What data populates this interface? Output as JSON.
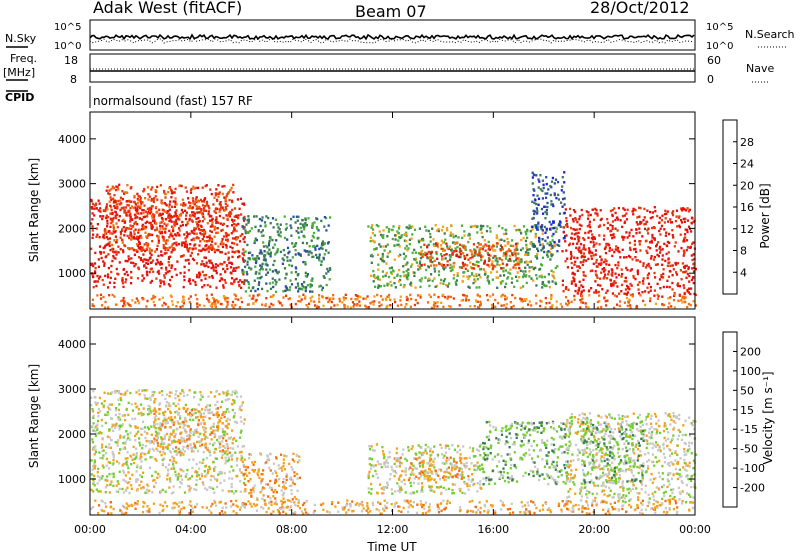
{
  "header": {
    "title": "Adak West (fitACF)",
    "beam": "Beam 07",
    "date": "28/Oct/2012"
  },
  "status": {
    "nsky_label": "N.Sky",
    "nsky_ticks": [
      "10^5",
      "10^0"
    ],
    "nsearch_label": "N.Search",
    "nsearch_ticks": [
      "10^5",
      "10^0"
    ],
    "freq_label_line1": "Freq.",
    "freq_label_line2": "[MHz]",
    "freq_ticks": [
      "18",
      "8"
    ],
    "nave_label": "Nave",
    "nave_ticks": [
      "60",
      "0"
    ],
    "cpid_label": "CPID",
    "cpid_text": "normalsound (fast) 157 RF"
  },
  "chart_data": [
    {
      "type": "heatmap",
      "name": "power",
      "ylabel": "Slant Range [km]",
      "yticks": [
        "1000",
        "2000",
        "3000",
        "4000"
      ],
      "ylim": [
        200,
        4600
      ],
      "xlim": [
        0,
        24
      ],
      "colorbar": {
        "label": "Power [dB]",
        "ticks": [
          "4",
          "8",
          "12",
          "16",
          "20",
          "24",
          "28"
        ],
        "colors": [
          "#1f1fe6",
          "#2a4fa0",
          "#3a7a54",
          "#4caf3a",
          "#f5a21a",
          "#f56f10",
          "#e83a0c",
          "#e4120b"
        ]
      },
      "regions": [
        {
          "t0": 0.0,
          "t1": 6.1,
          "r0": 700,
          "r1": 2700,
          "level": 7
        },
        {
          "t0": 0.5,
          "t1": 5.8,
          "r0": 1500,
          "r1": 3000,
          "level": 6
        },
        {
          "t0": 6.0,
          "t1": 9.5,
          "r0": 600,
          "r1": 2300,
          "level": 2
        },
        {
          "t0": 11.0,
          "t1": 18.5,
          "r0": 700,
          "r1": 2100,
          "level": 3
        },
        {
          "t0": 13.0,
          "t1": 17.0,
          "r0": 1100,
          "r1": 1700,
          "level": 6
        },
        {
          "t0": 17.5,
          "t1": 18.8,
          "r0": 1500,
          "r1": 3300,
          "level": 1
        },
        {
          "t0": 18.7,
          "t1": 24.0,
          "r0": 500,
          "r1": 2500,
          "level": 7
        },
        {
          "t0": 0.0,
          "t1": 24.0,
          "r0": 250,
          "r1": 550,
          "level": 5
        }
      ]
    },
    {
      "type": "heatmap",
      "name": "velocity",
      "ylabel": "Slant Range [km]",
      "yticks": [
        "1000",
        "2000",
        "3000",
        "4000"
      ],
      "ylim": [
        200,
        4600
      ],
      "xlim": [
        0,
        24
      ],
      "xlabel": "Time UT",
      "xticks": [
        "00:00",
        "04:00",
        "08:00",
        "12:00",
        "16:00",
        "20:00",
        "00:00"
      ],
      "colorbar": {
        "label": "Velocity [m s⁻¹]",
        "ticks": [
          "200",
          "100",
          "50",
          "15",
          "-15",
          "-50",
          "-100",
          "-200"
        ],
        "colors": [
          "#1f1fe6",
          "#2a4fa0",
          "#3a7a54",
          "#74cf2e",
          "#c8c8c8",
          "#f5a21a",
          "#f56f10",
          "#e83a0c",
          "#e4120b"
        ]
      },
      "regions": [
        {
          "t0": 0.0,
          "t1": 6.1,
          "r0": 700,
          "r1": 3000,
          "level": 4
        },
        {
          "t0": 2.5,
          "t1": 5.5,
          "r0": 1600,
          "r1": 2600,
          "level": 5
        },
        {
          "t0": 6.0,
          "t1": 8.3,
          "r0": 400,
          "r1": 1600,
          "level": 5
        },
        {
          "t0": 11.0,
          "t1": 15.5,
          "r0": 700,
          "r1": 1800,
          "level": 4
        },
        {
          "t0": 12.0,
          "t1": 15.0,
          "r0": 1000,
          "r1": 1500,
          "level": 5
        },
        {
          "t0": 15.5,
          "t1": 19.0,
          "r0": 900,
          "r1": 2300,
          "level": 3
        },
        {
          "t0": 18.8,
          "t1": 24.0,
          "r0": 500,
          "r1": 2500,
          "level": 4
        },
        {
          "t0": 19.5,
          "t1": 22.0,
          "r0": 900,
          "r1": 2300,
          "level": 3
        },
        {
          "t0": 0.0,
          "t1": 24.0,
          "r0": 250,
          "r1": 550,
          "level": 5
        }
      ]
    }
  ]
}
